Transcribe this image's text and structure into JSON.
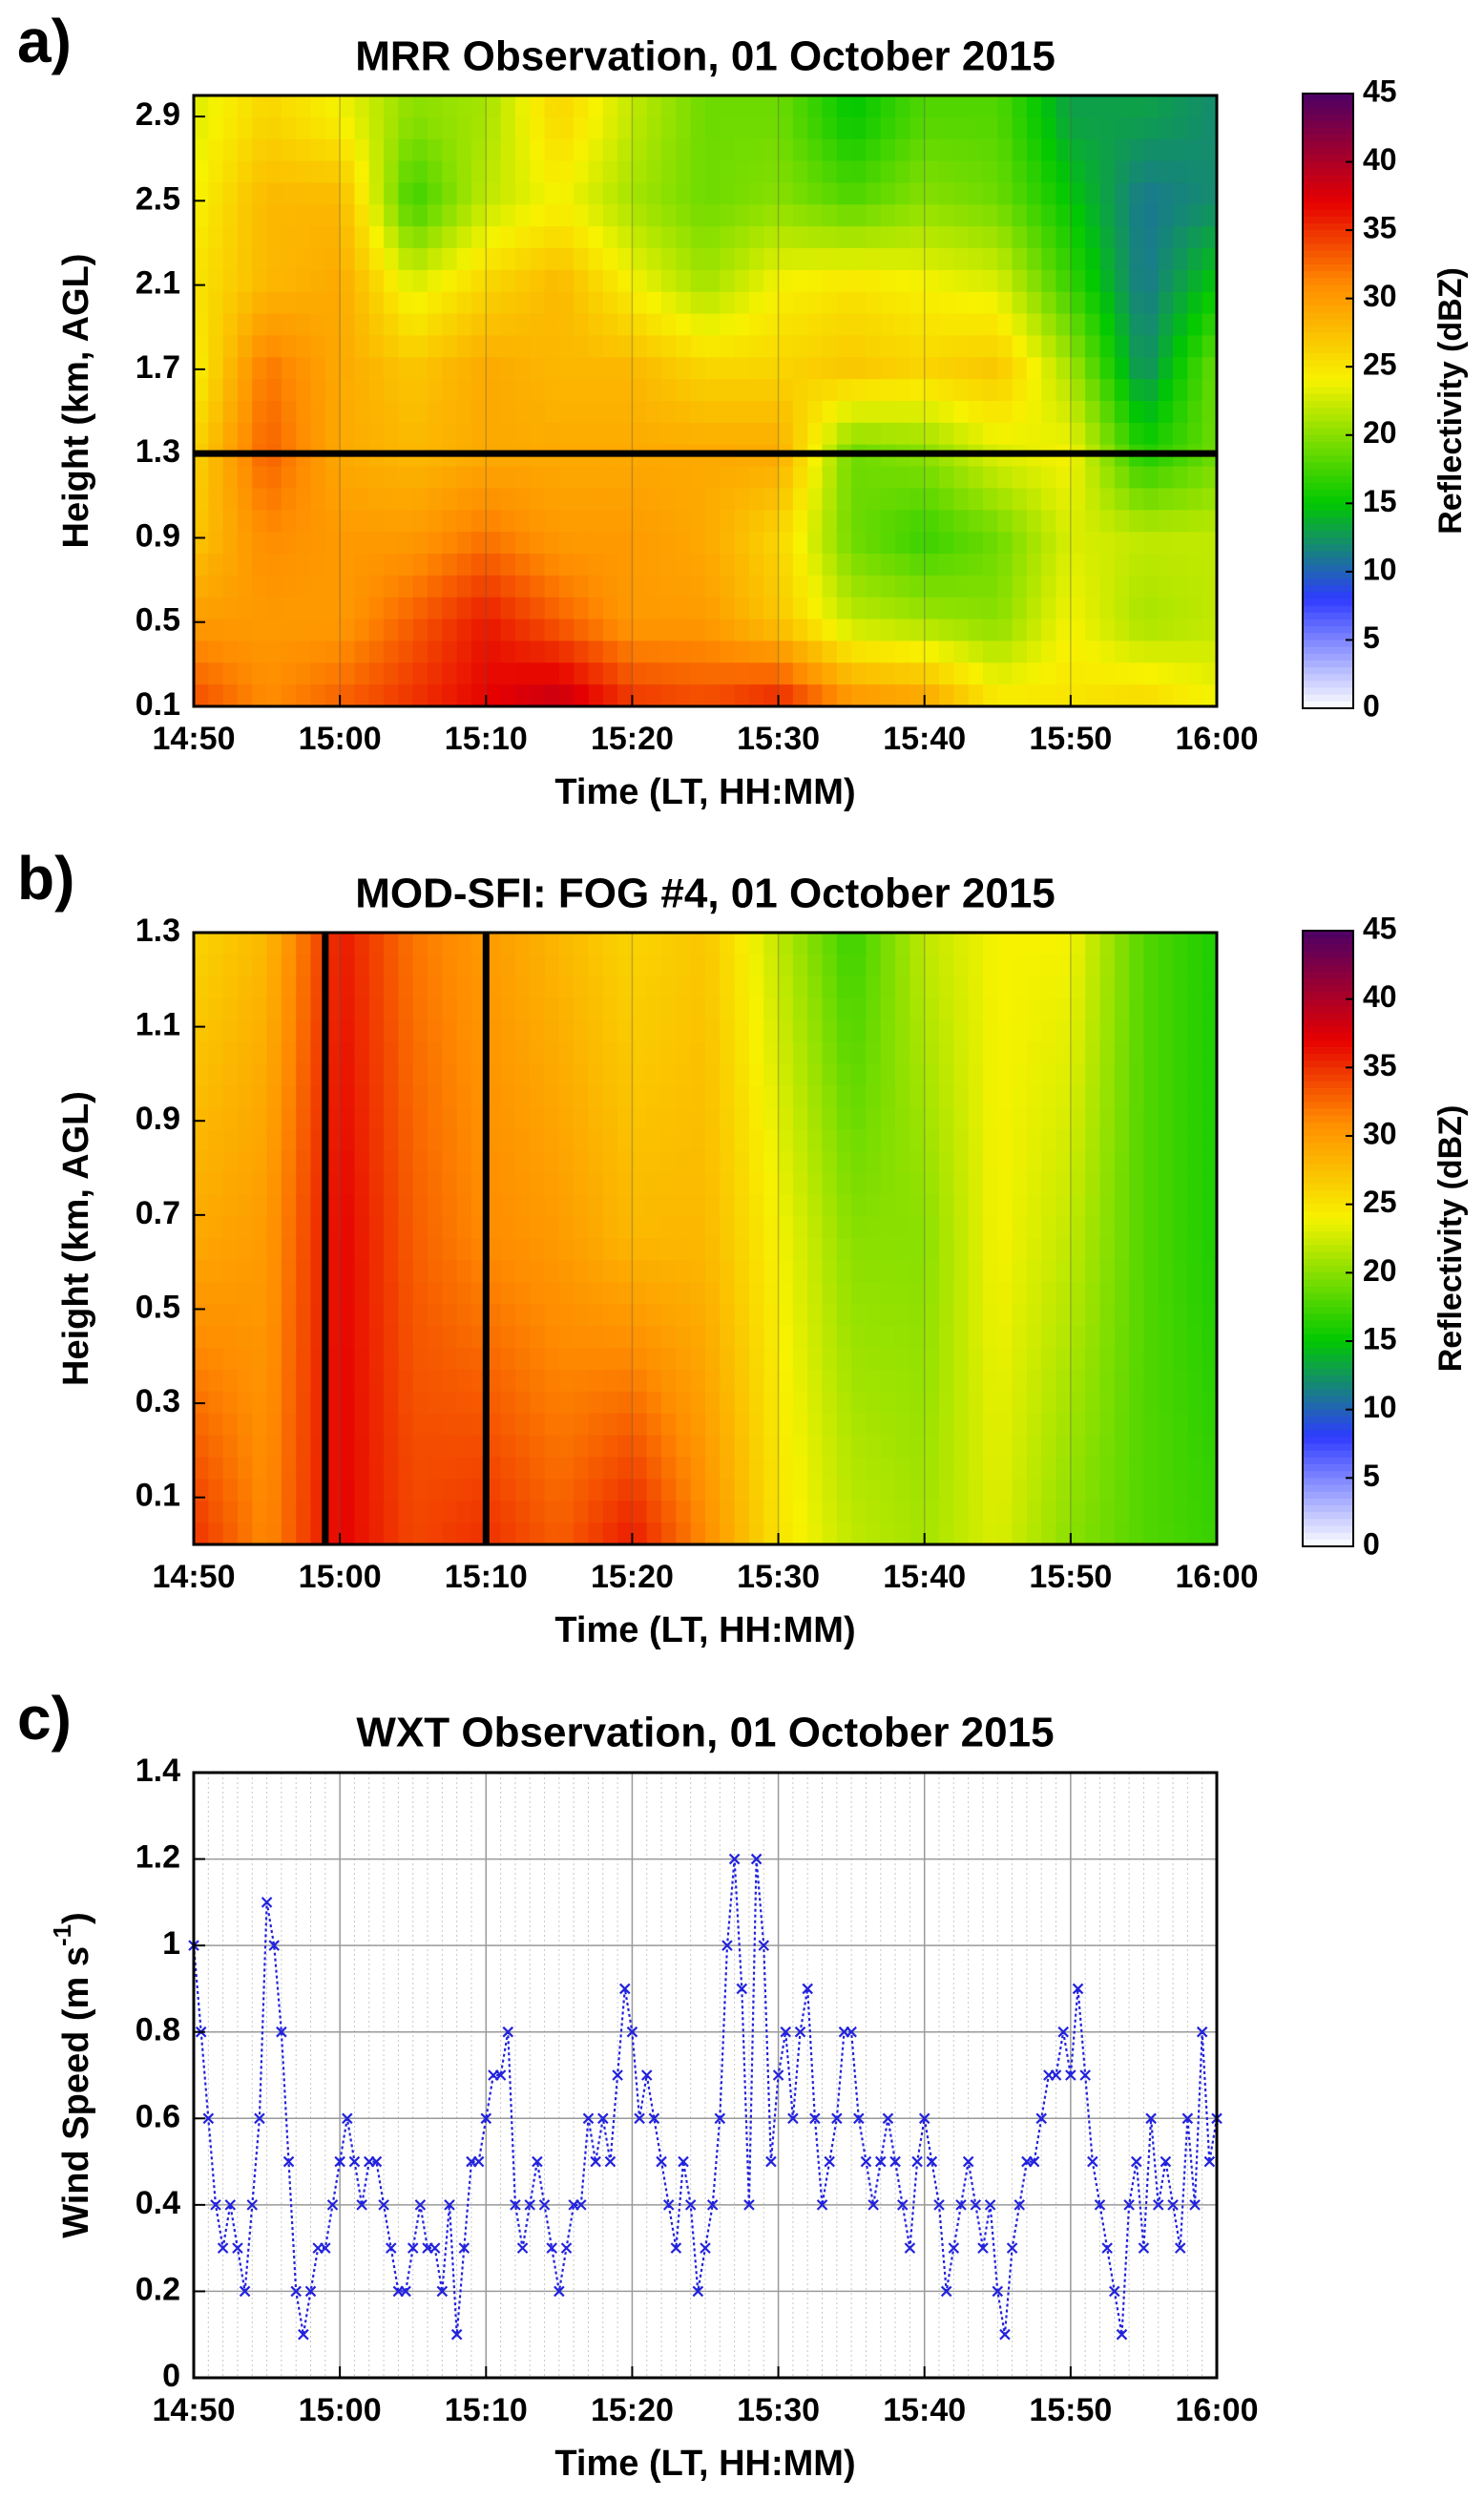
{
  "figure": {
    "panels": [
      {
        "letter": "a)",
        "title": "MRR Observation, 01 October 2015"
      },
      {
        "letter": "b)",
        "title": "MOD-SFI: FOG #4, 01 October 2015"
      },
      {
        "letter": "c)",
        "title": "WXT Observation, 01 October 2015"
      }
    ]
  },
  "colors": {
    "colormap": [
      "#ffffff",
      "#2e3bff",
      "#00c800",
      "#f7f200",
      "#ff8c00",
      "#e60000",
      "#4b0066"
    ],
    "wind_marker": "#2222dd",
    "overlay_line": "#000000"
  },
  "chart_data": [
    {
      "type": "heatmap",
      "title": "MRR Observation, 01 October 2015",
      "xlabel": "Time (LT, HH:MM)",
      "ylabel": "Height (km, AGL)",
      "xticks": [
        "14:50",
        "15:00",
        "15:10",
        "15:20",
        "15:30",
        "15:40",
        "15:50",
        "16:00"
      ],
      "xlim_minutes": [
        0,
        70
      ],
      "yticks": [
        "0.1",
        "0.5",
        "0.9",
        "1.3",
        "1.7",
        "2.1",
        "2.5",
        "2.9"
      ],
      "ylim": [
        0.1,
        3.0
      ],
      "colorbar": {
        "label": "Reflectivity (dBZ)",
        "ticks": [
          "0",
          "5",
          "10",
          "15",
          "20",
          "25",
          "30",
          "35",
          "40",
          "45"
        ],
        "range": [
          0,
          45
        ]
      },
      "horizontal_line_km": 1.3,
      "reflectivity_grid_dBZ": {
        "heights_km": [
          0.1,
          0.5,
          0.9,
          1.3,
          1.7,
          2.1,
          2.5,
          2.9
        ],
        "times_min": [
          0,
          5,
          10,
          15,
          20,
          25,
          30,
          35,
          40,
          45,
          50,
          55,
          60,
          65,
          70
        ],
        "rows": [
          [
            34,
            31,
            33,
            35,
            37,
            39,
            35,
            34,
            36,
            31,
            30,
            25,
            25,
            26,
            24
          ],
          [
            30,
            30,
            30,
            33,
            36,
            33,
            30,
            30,
            27,
            22,
            21,
            20,
            24,
            21,
            22
          ],
          [
            27,
            31,
            30,
            30,
            32,
            30,
            30,
            29,
            26,
            19,
            17,
            19,
            23,
            22,
            22
          ],
          [
            26,
            33,
            29,
            28,
            29,
            29,
            29,
            29,
            29,
            19,
            20,
            23,
            24,
            16,
            19
          ],
          [
            24,
            32,
            29,
            27,
            29,
            28,
            28,
            26,
            26,
            27,
            26,
            27,
            21,
            12,
            19
          ],
          [
            25,
            28,
            29,
            23,
            26,
            28,
            24,
            21,
            24,
            25,
            24,
            23,
            17,
            11,
            15
          ],
          [
            24,
            28,
            28,
            17,
            22,
            24,
            21,
            19,
            20,
            18,
            20,
            19,
            15,
            11,
            12
          ],
          [
            23,
            26,
            24,
            20,
            21,
            26,
            22,
            19,
            19,
            15,
            18,
            18,
            13,
            13,
            12
          ]
        ]
      }
    },
    {
      "type": "heatmap",
      "title": "MOD-SFI: FOG #4, 01 October 2015",
      "xlabel": "Time (LT, HH:MM)",
      "ylabel": "Height (km, AGL)",
      "xticks": [
        "14:50",
        "15:00",
        "15:10",
        "15:20",
        "15:30",
        "15:40",
        "15:50",
        "16:00"
      ],
      "xlim_minutes": [
        0,
        70
      ],
      "yticks": [
        "0.1",
        "0.3",
        "0.5",
        "0.7",
        "0.9",
        "1.1",
        "1.3"
      ],
      "ylim": [
        0.0,
        1.3
      ],
      "colorbar": {
        "label": "Reflectivity (dBZ)",
        "ticks": [
          "0",
          "5",
          "10",
          "15",
          "20",
          "25",
          "30",
          "35",
          "40",
          "45"
        ],
        "range": [
          0,
          45
        ]
      },
      "vertical_lines_minutes": [
        9,
        20
      ],
      "reflectivity_grid_dBZ": {
        "heights_km": [
          0.0,
          0.65,
          1.3
        ],
        "times_min": [
          0,
          5,
          10,
          15,
          20,
          25,
          30,
          35,
          40,
          45,
          50,
          55,
          60,
          65,
          70
        ],
        "rows": [
          [
            35,
            31,
            37,
            34,
            35,
            33,
            36,
            31,
            25,
            22,
            21,
            23,
            20,
            18,
            17
          ],
          [
            29,
            30,
            37,
            33,
            31,
            30,
            28,
            28,
            24,
            20,
            20,
            24,
            22,
            18,
            16
          ],
          [
            26,
            28,
            36,
            32,
            30,
            28,
            26,
            27,
            22,
            17,
            22,
            24,
            24,
            18,
            16
          ]
        ]
      }
    },
    {
      "type": "scatter",
      "title": "WXT Observation, 01 October 2015",
      "xlabel": "Time (LT, HH:MM)",
      "ylabel": "Wind Speed (m s^-1)",
      "xticks": [
        "14:50",
        "15:00",
        "15:10",
        "15:20",
        "15:30",
        "15:40",
        "15:50",
        "16:00"
      ],
      "xlim_minutes": [
        0,
        70
      ],
      "yticks": [
        "0",
        "0.2",
        "0.4",
        "0.6",
        "0.8",
        "1",
        "1.2",
        "1.4"
      ],
      "ylim": [
        0,
        1.4
      ],
      "marker": "x",
      "linestyle": "dotted",
      "series": [
        {
          "name": "Wind Speed",
          "x_minutes": [
            0,
            0.5,
            1,
            1.5,
            2,
            2.5,
            3,
            3.5,
            4,
            4.5,
            5,
            5.5,
            6,
            6.5,
            7,
            7.5,
            8,
            8.5,
            9,
            9.5,
            10,
            10.5,
            11,
            11.5,
            12,
            12.5,
            13,
            13.5,
            14,
            14.5,
            15,
            15.5,
            16,
            16.5,
            17,
            17.5,
            18,
            18.5,
            19,
            19.5,
            20,
            20.5,
            21,
            21.5,
            22,
            22.5,
            23,
            23.5,
            24,
            24.5,
            25,
            25.5,
            26,
            26.5,
            27,
            27.5,
            28,
            28.5,
            29,
            29.5,
            30,
            30.5,
            31,
            31.5,
            32,
            32.5,
            33,
            33.5,
            34,
            34.5,
            35,
            35.5,
            36,
            36.5,
            37,
            37.5,
            38,
            38.5,
            39,
            39.5,
            40,
            40.5,
            41,
            41.5,
            42,
            42.5,
            43,
            43.5,
            44,
            44.5,
            45,
            45.5,
            46,
            46.5,
            47,
            47.5,
            48,
            48.5,
            49,
            49.5,
            50,
            50.5,
            51,
            51.5,
            52,
            52.5,
            53,
            53.5,
            54,
            54.5,
            55,
            55.5,
            56,
            56.5,
            57,
            57.5,
            58,
            58.5,
            59,
            59.5,
            60,
            60.5,
            61,
            61.5,
            62,
            62.5,
            63,
            63.5,
            64,
            64.5,
            65,
            65.5,
            66,
            66.5,
            67,
            67.5,
            68,
            68.5,
            69,
            69.5,
            70
          ],
          "values": [
            1.0,
            0.8,
            0.6,
            0.4,
            0.3,
            0.4,
            0.3,
            0.2,
            0.4,
            0.6,
            1.1,
            1.0,
            0.8,
            0.5,
            0.2,
            0.1,
            0.2,
            0.3,
            0.3,
            0.4,
            0.5,
            0.6,
            0.5,
            0.4,
            0.5,
            0.5,
            0.4,
            0.3,
            0.2,
            0.2,
            0.3,
            0.4,
            0.3,
            0.3,
            0.2,
            0.4,
            0.1,
            0.3,
            0.5,
            0.5,
            0.6,
            0.7,
            0.7,
            0.8,
            0.4,
            0.3,
            0.4,
            0.5,
            0.4,
            0.3,
            0.2,
            0.3,
            0.4,
            0.4,
            0.6,
            0.5,
            0.6,
            0.5,
            0.7,
            0.9,
            0.8,
            0.6,
            0.7,
            0.6,
            0.5,
            0.4,
            0.3,
            0.5,
            0.4,
            0.2,
            0.3,
            0.4,
            0.6,
            1.0,
            1.2,
            0.9,
            0.4,
            1.2,
            1.0,
            0.5,
            0.7,
            0.8,
            0.6,
            0.8,
            0.9,
            0.6,
            0.4,
            0.5,
            0.6,
            0.8,
            0.8,
            0.6,
            0.5,
            0.4,
            0.5,
            0.6,
            0.5,
            0.4,
            0.3,
            0.5,
            0.6,
            0.5,
            0.4,
            0.2,
            0.3,
            0.4,
            0.5,
            0.4,
            0.3,
            0.4,
            0.2,
            0.1,
            0.3,
            0.4,
            0.5,
            0.5,
            0.6,
            0.7,
            0.7,
            0.8,
            0.7,
            0.9,
            0.7,
            0.5,
            0.4,
            0.3,
            0.2,
            0.1,
            0.4,
            0.5,
            0.3,
            0.6,
            0.4,
            0.5,
            0.4,
            0.3,
            0.6,
            0.4,
            0.8,
            0.5,
            0.6
          ]
        }
      ]
    }
  ]
}
